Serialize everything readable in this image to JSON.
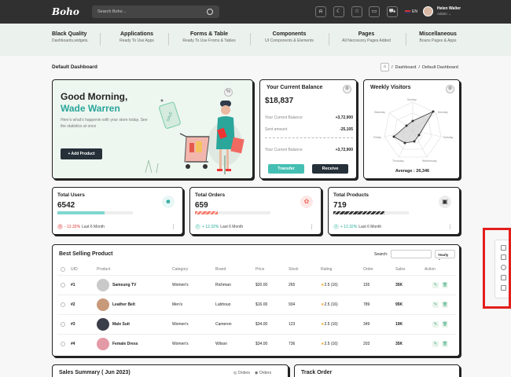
{
  "app": {
    "logo": "Boho"
  },
  "search": {
    "placeholder": "Search Boho .."
  },
  "top": {
    "lang": "EN",
    "user_name": "Helen Walter",
    "user_role": "Admin ⌄"
  },
  "menu": [
    {
      "title": "Black Quality",
      "sub": "Dashboards,widgets."
    },
    {
      "title": "Applications",
      "sub": "Ready To Use Apps"
    },
    {
      "title": "Forms & Table",
      "sub": "Ready To Use Froms & Tables"
    },
    {
      "title": "Components",
      "sub": "UI Components & Elements"
    },
    {
      "title": "Pages",
      "sub": "All Neccesory Pages Added"
    },
    {
      "title": "Miscellaneous",
      "sub": "Bouns Pages & Apps"
    }
  ],
  "page": {
    "title": "Default Dashboard",
    "breadcrumb": [
      "Dashboard",
      "Default Dashboard"
    ],
    "sep": "/"
  },
  "welcome": {
    "greeting": "Good Morning,",
    "name": "Wade Warren",
    "desc": "Here's what's happenin with your store today. See the statistics at once",
    "button": "+ Add Product",
    "tag": "SALE"
  },
  "balance": {
    "title": "Your Current Balance",
    "amount": "$18,837",
    "rows": [
      {
        "label": "Your Current Balance",
        "value": "+3,72,900"
      },
      {
        "label": "Sent amount",
        "value": "-25,105"
      },
      {
        "label": "Your Current Balance",
        "value": "+3,72,900"
      }
    ],
    "transfer": "Transfer",
    "receive": "Receive"
  },
  "visitors": {
    "title": "Weekly Visitors",
    "days": [
      "Sunday",
      "Monday",
      "Tuesday",
      "Wednesday",
      "Thursday",
      "Friday",
      "Saturday"
    ],
    "average": "Average : 26,346"
  },
  "stats": [
    {
      "title": "Total Users",
      "value": "6542",
      "change": "- 12.32%",
      "period": "Last 6 Month",
      "progress": 0.62,
      "color": "#7fd6cf",
      "pattern": "solid",
      "dot": "#f3c5c5",
      "dotc": "#d33",
      "arrow": "↓",
      "icon_color": "#e8f7f6"
    },
    {
      "title": "Total Orders",
      "value": "659",
      "change": "+ 12.32%",
      "period": "Last 6 Month",
      "progress": 0.3,
      "color": "#f47c6c",
      "pattern": "striped",
      "dot": "#cfeee9",
      "dotc": "#2a9",
      "arrow": "↑",
      "icon_color": "#fde8e6"
    },
    {
      "title": "Total Products",
      "value": "719",
      "change": "+ 12.32%",
      "period": "Last 6 Month",
      "progress": 0.68,
      "color": "#333",
      "pattern": "striped",
      "dot": "#cfeee9",
      "dotc": "#2a9",
      "arrow": "↑",
      "icon_color": "#ececec"
    }
  ],
  "table": {
    "title": "Best Selling Product",
    "search_label": "Search:",
    "filter": "Yearly ⌄",
    "headers": [
      "UID",
      "Product",
      "Category",
      "Brand",
      "Price",
      "Stock",
      "Rating",
      "Order",
      "Sales",
      "Action"
    ],
    "rows": [
      {
        "uid": "#1",
        "product": "Samsung TV",
        "category": "Women's",
        "brand": "Richman",
        "price": "$20.00",
        "stock": "265",
        "rating": "2.5 (16)",
        "order": "155",
        "sales": "35K",
        "img": "#c9c9c9"
      },
      {
        "uid": "#2",
        "product": "Leather Belt",
        "category": "Men's",
        "brand": "Lubhouo",
        "price": "$16.00",
        "stock": "934",
        "rating": "2.5 (16)",
        "order": "789",
        "sales": "95K",
        "img": "#c89a7a"
      },
      {
        "uid": "#3",
        "product": "Male Suit",
        "category": "Women's",
        "brand": "Cameron",
        "price": "$34.00",
        "stock": "123",
        "rating": "2.5 (16)",
        "order": "349",
        "sales": "19K",
        "img": "#3a3d4a"
      },
      {
        "uid": "#4",
        "product": "Female Dress",
        "category": "Women's",
        "brand": "Wilson",
        "price": "$34.00",
        "stock": "736",
        "rating": "2.5 (16)",
        "order": "203",
        "sales": "35K",
        "img": "#e39aa6"
      }
    ]
  },
  "sales": {
    "title": "Sales Summary ( Jun 2023)",
    "legend": [
      "Orders",
      "Orders"
    ]
  },
  "track": {
    "title": "Track Order"
  },
  "colors": {
    "accent": "#2ba69b",
    "dark": "#253039",
    "red": "#e31e1e"
  }
}
